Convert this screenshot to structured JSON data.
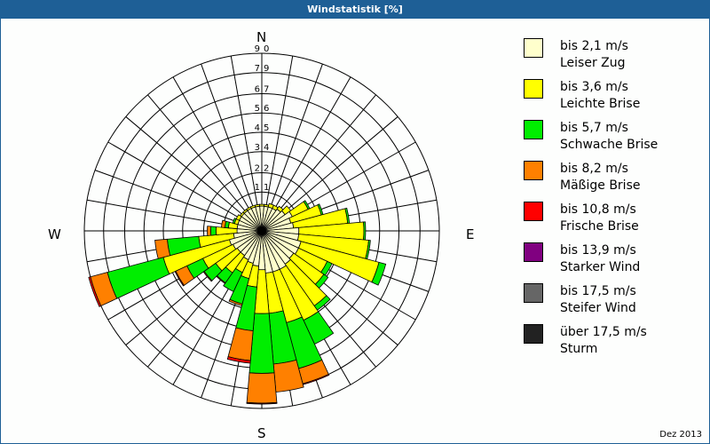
{
  "title": "Windstatistik [%]",
  "footer": "Dez 2013",
  "compass": {
    "n": "N",
    "e": "E",
    "s": "S",
    "w": "W"
  },
  "legend": [
    {
      "range": "bis 2,1 m/s",
      "name": "Leiser Zug",
      "color": "#ffffcc"
    },
    {
      "range": "bis 3,6 m/s",
      "name": "Leichte Brise",
      "color": "#ffff00"
    },
    {
      "range": "bis 5,7 m/s",
      "name": "Schwache Brise",
      "color": "#00ee00"
    },
    {
      "range": "bis 8,2 m/s",
      "name": "Mäßige Brise",
      "color": "#ff8000"
    },
    {
      "range": "bis 10,8 m/s",
      "name": "Frische Brise",
      "color": "#ff0000"
    },
    {
      "range": "bis 13,9 m/s",
      "name": "Starker Wind",
      "color": "#800080"
    },
    {
      "range": "bis 17,5 m/s",
      "name": "Steifer Wind",
      "color": "#666666"
    },
    {
      "range": "über 17,5 m/s",
      "name": "Sturm",
      "color": "#222222"
    }
  ],
  "chart_data": {
    "type": "wind-rose",
    "title": "Windstatistik [%]",
    "unit": "%",
    "ring_labels": [
      "1,1",
      "2,2",
      "3,4",
      "4,5",
      "5,6",
      "6,7",
      "7,9",
      "9,0"
    ],
    "ring_values": [
      1.1,
      2.2,
      3.4,
      4.5,
      5.6,
      6.7,
      7.9,
      9.0
    ],
    "rmax": 9.0,
    "sector_width_deg": 10,
    "series_names": [
      "bis 2,1 m/s",
      "bis 3,6 m/s",
      "bis 5,7 m/s",
      "bis 8,2 m/s",
      "bis 10,8 m/s",
      "bis 13,9 m/s",
      "bis 17,5 m/s",
      "über 17,5 m/s"
    ],
    "note": "cumulative values per direction (degrees clockwise from N), estimated from chart",
    "directions": [
      {
        "deg": 0,
        "cum": [
          0.3,
          0.4
        ]
      },
      {
        "deg": 10,
        "cum": [
          0.3,
          0.4
        ]
      },
      {
        "deg": 20,
        "cum": [
          0.3,
          0.5
        ]
      },
      {
        "deg": 30,
        "cum": [
          0.3,
          0.5
        ]
      },
      {
        "deg": 40,
        "cum": [
          0.4,
          0.6
        ]
      },
      {
        "deg": 50,
        "cum": [
          0.5,
          0.9
        ]
      },
      {
        "deg": 60,
        "cum": [
          0.8,
          1.8,
          1.9
        ]
      },
      {
        "deg": 70,
        "cum": [
          0.6,
          2.4,
          2.5
        ]
      },
      {
        "deg": 80,
        "cum": [
          0.7,
          3.8,
          3.9
        ]
      },
      {
        "deg": 90,
        "cum": [
          1.0,
          4.7,
          4.8
        ]
      },
      {
        "deg": 100,
        "cum": [
          1.0,
          5.0,
          5.1
        ]
      },
      {
        "deg": 110,
        "cum": [
          1.2,
          5.8,
          6.2
        ]
      },
      {
        "deg": 120,
        "cum": [
          1.2,
          3.0,
          3.3
        ]
      },
      {
        "deg": 130,
        "cum": [
          1.1,
          3.2,
          3.5
        ]
      },
      {
        "deg": 140,
        "cum": [
          1.2,
          4.1,
          4.4
        ]
      },
      {
        "deg": 150,
        "cum": [
          1.3,
          4.5,
          6.0
        ]
      },
      {
        "deg": 160,
        "cum": [
          1.3,
          4.3,
          7.0,
          7.9,
          7.95
        ]
      },
      {
        "deg": 170,
        "cum": [
          1.3,
          3.6,
          6.5,
          8.1
        ]
      },
      {
        "deg": 180,
        "cum": [
          1.1,
          3.6,
          7.0,
          8.7,
          8.75
        ]
      },
      {
        "deg": 190,
        "cum": [
          0.9,
          2.1,
          4.6,
          6.3,
          6.45
        ]
      },
      {
        "deg": 200,
        "cum": [
          0.8,
          1.7,
          3.2,
          3.3
        ]
      },
      {
        "deg": 210,
        "cum": [
          0.7,
          1.5,
          2.7
        ]
      },
      {
        "deg": 220,
        "cum": [
          0.6,
          1.8,
          2.5,
          2.55
        ]
      },
      {
        "deg": 230,
        "cum": [
          0.6,
          2.1,
          2.9,
          2.95
        ]
      },
      {
        "deg": 240,
        "cum": [
          0.7,
          2.6,
          3.6,
          4.3,
          4.35
        ]
      },
      {
        "deg": 250,
        "cum": [
          0.8,
          4.7,
          8.0,
          9.0,
          9.1
        ]
      },
      {
        "deg": 260,
        "cum": [
          0.5,
          2.5,
          4.3,
          5.0
        ]
      },
      {
        "deg": 270,
        "cum": [
          0.3,
          1.5,
          1.8,
          2.0
        ]
      },
      {
        "deg": 280,
        "cum": [
          0.3,
          0.8,
          1.0,
          1.2
        ]
      },
      {
        "deg": 290,
        "cum": [
          0.3,
          0.5,
          0.6
        ]
      },
      {
        "deg": 300,
        "cum": [
          0.3,
          0.5
        ]
      },
      {
        "deg": 310,
        "cum": [
          0.3,
          0.4
        ]
      },
      {
        "deg": 320,
        "cum": [
          0.3,
          0.4
        ]
      },
      {
        "deg": 330,
        "cum": [
          0.3,
          0.4
        ]
      },
      {
        "deg": 340,
        "cum": [
          0.3,
          0.4
        ]
      },
      {
        "deg": 350,
        "cum": [
          0.3,
          0.4
        ]
      }
    ]
  }
}
